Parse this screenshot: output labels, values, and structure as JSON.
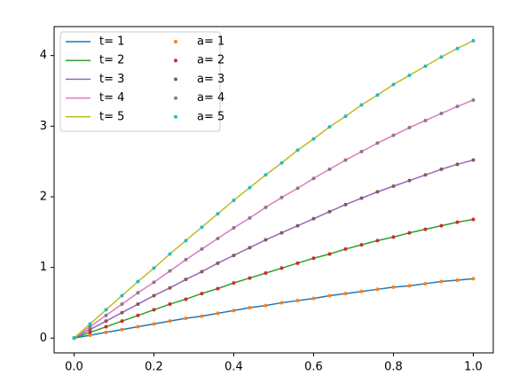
{
  "chart_data": {
    "type": "line",
    "x": [
      0,
      0.04,
      0.08,
      0.12,
      0.16,
      0.2,
      0.24,
      0.28,
      0.32,
      0.36,
      0.4,
      0.44,
      0.48,
      0.52,
      0.56,
      0.6,
      0.64,
      0.68,
      0.72,
      0.76,
      0.8,
      0.84,
      0.88,
      0.92,
      0.96,
      1
    ],
    "xlim": [
      -0.05,
      1.05
    ],
    "xticks": [
      {
        "value": 0,
        "label": "0.0"
      },
      {
        "value": 0.2,
        "label": "0.2"
      },
      {
        "value": 0.4,
        "label": "0.4"
      },
      {
        "value": 0.6,
        "label": "0.6"
      },
      {
        "value": 0.8,
        "label": "0.8"
      },
      {
        "value": 1,
        "label": "1.0"
      }
    ],
    "ylim": [
      -0.21,
      4.41
    ],
    "yticks": [
      0,
      1,
      2,
      3,
      4
    ],
    "grid": false,
    "legend": "upper left",
    "legend_columns": 2,
    "series": [
      {
        "name": "t= 1",
        "type": "line",
        "color": "#1f77b4",
        "values": [
          0,
          0.04,
          0.08,
          0.12,
          0.16,
          0.2,
          0.24,
          0.28,
          0.31,
          0.35,
          0.39,
          0.43,
          0.46,
          0.5,
          0.53,
          0.56,
          0.6,
          0.63,
          0.66,
          0.69,
          0.72,
          0.74,
          0.77,
          0.8,
          0.82,
          0.84
        ]
      },
      {
        "name": "t= 2",
        "type": "line",
        "color": "#2ca02c",
        "values": [
          0,
          0.08,
          0.16,
          0.24,
          0.32,
          0.4,
          0.48,
          0.55,
          0.63,
          0.7,
          0.78,
          0.85,
          0.92,
          0.99,
          1.06,
          1.13,
          1.19,
          1.26,
          1.32,
          1.38,
          1.43,
          1.49,
          1.54,
          1.59,
          1.64,
          1.68
        ]
      },
      {
        "name": "t= 3",
        "type": "line",
        "color": "#9467bd",
        "values": [
          0,
          0.12,
          0.24,
          0.36,
          0.48,
          0.6,
          0.71,
          0.83,
          0.94,
          1.06,
          1.17,
          1.28,
          1.39,
          1.49,
          1.59,
          1.69,
          1.79,
          1.89,
          1.98,
          2.07,
          2.15,
          2.23,
          2.31,
          2.39,
          2.46,
          2.52
        ]
      },
      {
        "name": "t= 4",
        "type": "line",
        "color": "#e377c2",
        "values": [
          0,
          0.16,
          0.32,
          0.48,
          0.64,
          0.79,
          0.95,
          1.11,
          1.26,
          1.41,
          1.56,
          1.7,
          1.85,
          1.99,
          2.12,
          2.26,
          2.39,
          2.52,
          2.64,
          2.76,
          2.87,
          2.98,
          3.08,
          3.18,
          3.28,
          3.37
        ]
      },
      {
        "name": "t= 5",
        "type": "line",
        "color": "#bcbd22",
        "values": [
          0,
          0.2,
          0.4,
          0.6,
          0.8,
          0.99,
          1.19,
          1.38,
          1.57,
          1.76,
          1.95,
          2.13,
          2.31,
          2.48,
          2.66,
          2.82,
          2.99,
          3.14,
          3.3,
          3.44,
          3.59,
          3.72,
          3.85,
          3.98,
          4.1,
          4.21
        ]
      },
      {
        "name": "a= 1",
        "type": "scatter",
        "color": "#ff7f0e",
        "values": [
          0,
          0.04,
          0.08,
          0.12,
          0.16,
          0.2,
          0.24,
          0.28,
          0.31,
          0.35,
          0.39,
          0.43,
          0.46,
          0.5,
          0.53,
          0.56,
          0.6,
          0.63,
          0.66,
          0.69,
          0.72,
          0.74,
          0.77,
          0.8,
          0.82,
          0.84
        ]
      },
      {
        "name": "a= 2",
        "type": "scatter",
        "color": "#d62728",
        "values": [
          0,
          0.08,
          0.16,
          0.24,
          0.32,
          0.4,
          0.48,
          0.55,
          0.63,
          0.7,
          0.78,
          0.85,
          0.92,
          0.99,
          1.06,
          1.13,
          1.19,
          1.26,
          1.32,
          1.38,
          1.43,
          1.49,
          1.54,
          1.59,
          1.64,
          1.68
        ]
      },
      {
        "name": "a= 3",
        "type": "scatter",
        "color": "#8c564b",
        "values": [
          0,
          0.12,
          0.24,
          0.36,
          0.48,
          0.6,
          0.71,
          0.83,
          0.94,
          1.06,
          1.17,
          1.28,
          1.39,
          1.49,
          1.59,
          1.69,
          1.79,
          1.89,
          1.98,
          2.07,
          2.15,
          2.23,
          2.31,
          2.39,
          2.46,
          2.52
        ]
      },
      {
        "name": "a= 4",
        "type": "scatter",
        "color": "#7f7f7f",
        "values": [
          0,
          0.16,
          0.32,
          0.48,
          0.64,
          0.79,
          0.95,
          1.11,
          1.26,
          1.41,
          1.56,
          1.7,
          1.85,
          1.99,
          2.12,
          2.26,
          2.39,
          2.52,
          2.64,
          2.76,
          2.87,
          2.98,
          3.08,
          3.18,
          3.28,
          3.37
        ]
      },
      {
        "name": "a= 5",
        "type": "scatter",
        "color": "#17becf",
        "values": [
          0,
          0.2,
          0.4,
          0.6,
          0.8,
          0.99,
          1.19,
          1.38,
          1.57,
          1.76,
          1.95,
          2.13,
          2.31,
          2.48,
          2.66,
          2.82,
          2.99,
          3.14,
          3.3,
          3.44,
          3.59,
          3.72,
          3.85,
          3.98,
          4.1,
          4.21
        ]
      }
    ]
  }
}
